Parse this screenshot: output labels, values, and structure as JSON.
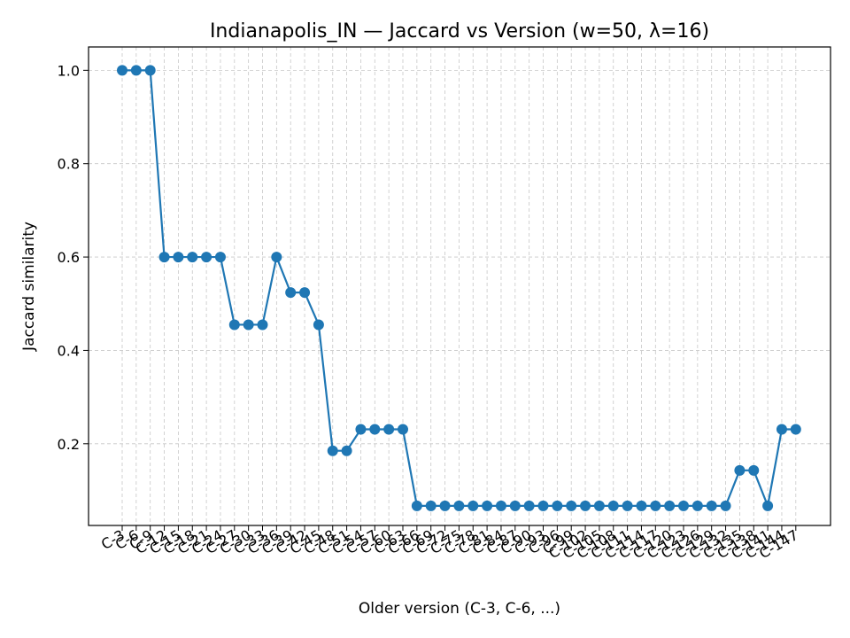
{
  "chart_data": {
    "type": "line",
    "title": "Indianapolis_IN — Jaccard vs Version (w=50, λ=16)",
    "xlabel": "Older version (C-3, C-6, ...)",
    "ylabel": "Jaccard similarity",
    "ylim": [
      0.025,
      1.05
    ],
    "yticks": [
      "0.2",
      "0.4",
      "0.6",
      "0.8",
      "1.0"
    ],
    "grid": true,
    "color": "#1f77b4",
    "categories": [
      "C-3",
      "C-6",
      "C-9",
      "C-12",
      "C-15",
      "C-18",
      "C-21",
      "C-24",
      "C-27",
      "C-30",
      "C-33",
      "C-36",
      "C-39",
      "C-42",
      "C-45",
      "C-48",
      "C-51",
      "C-54",
      "C-57",
      "C-60",
      "C-63",
      "C-66",
      "C-69",
      "C-72",
      "C-75",
      "C-78",
      "C-81",
      "C-84",
      "C-87",
      "C-90",
      "C-93",
      "C-96",
      "C-99",
      "C-102",
      "C-105",
      "C-108",
      "C-111",
      "C-114",
      "C-117",
      "C-120",
      "C-123",
      "C-126",
      "C-129",
      "C-132",
      "C-135",
      "C-138",
      "C-141",
      "C-144",
      "C-147"
    ],
    "values": [
      1.0,
      1.0,
      1.0,
      0.6,
      0.6,
      0.6,
      0.6,
      0.6,
      0.455,
      0.455,
      0.455,
      0.6,
      0.524,
      0.524,
      0.455,
      0.185,
      0.185,
      0.231,
      0.231,
      0.231,
      0.231,
      0.067,
      0.067,
      0.067,
      0.067,
      0.067,
      0.067,
      0.067,
      0.067,
      0.067,
      0.067,
      0.067,
      0.067,
      0.067,
      0.067,
      0.067,
      0.067,
      0.067,
      0.067,
      0.067,
      0.067,
      0.067,
      0.067,
      0.067,
      0.143,
      0.143,
      0.067,
      0.231,
      0.231
    ]
  }
}
